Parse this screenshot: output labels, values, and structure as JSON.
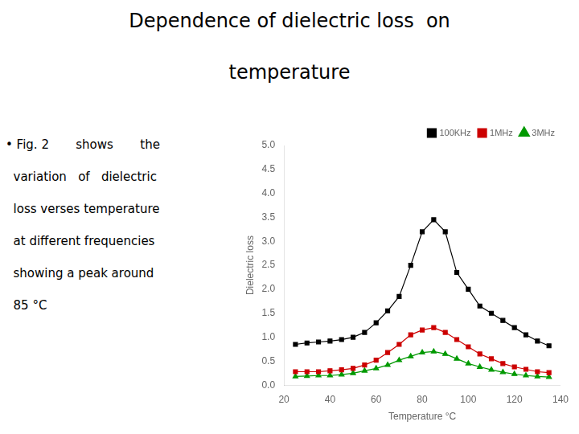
{
  "chart_data": {
    "type": "line",
    "title": [
      "Dependence of dielectric loss  on",
      "temperature"
    ],
    "annotations": [
      "• Fig. 2       shows       the",
      "  variation   of   dielectric",
      "  loss verses temperature",
      "  at different frequencies",
      "  showing a peak around",
      "  85 °C"
    ],
    "xlabel": "Temperature °C",
    "ylabel": "Dielectric loss",
    "x": [
      25,
      30,
      35,
      40,
      45,
      50,
      55,
      60,
      65,
      70,
      75,
      80,
      85,
      90,
      95,
      100,
      105,
      110,
      115,
      120,
      125,
      130,
      135
    ],
    "series": [
      {
        "name": "100KHz",
        "color": "#000000",
        "marker": "square",
        "values": [
          0.85,
          0.88,
          0.9,
          0.92,
          0.95,
          1.0,
          1.1,
          1.3,
          1.55,
          1.85,
          2.5,
          3.2,
          3.45,
          3.2,
          2.35,
          2.0,
          1.65,
          1.5,
          1.35,
          1.2,
          1.05,
          0.92,
          0.82
        ]
      },
      {
        "name": "1MHz",
        "color": "#cc0000",
        "marker": "square",
        "values": [
          0.28,
          0.28,
          0.28,
          0.3,
          0.32,
          0.35,
          0.42,
          0.52,
          0.68,
          0.85,
          1.05,
          1.15,
          1.2,
          1.1,
          0.95,
          0.8,
          0.65,
          0.55,
          0.45,
          0.38,
          0.33,
          0.28,
          0.26
        ]
      },
      {
        "name": "3MHz",
        "color": "#009900",
        "marker": "triangle",
        "values": [
          0.18,
          0.19,
          0.2,
          0.2,
          0.22,
          0.25,
          0.3,
          0.35,
          0.42,
          0.52,
          0.6,
          0.68,
          0.7,
          0.65,
          0.55,
          0.45,
          0.38,
          0.32,
          0.27,
          0.23,
          0.2,
          0.18,
          0.17
        ]
      }
    ],
    "xlim": [
      20,
      140
    ],
    "ylim": [
      0.0,
      5.0
    ],
    "xticks": [
      20,
      40,
      60,
      80,
      100,
      120,
      140
    ],
    "yticks": [
      {
        "value": 0.0,
        "label": "0.0"
      },
      0.5,
      {
        "value": 1.0,
        "label": "1.0"
      },
      1.5,
      {
        "value": 2.0,
        "label": "2.0"
      },
      2.5,
      {
        "value": 3.0,
        "label": "3.0"
      },
      3.5,
      {
        "value": 4.0,
        "label": "4.0"
      },
      4.5,
      {
        "value": 5.0,
        "label": "5.0"
      }
    ],
    "grid": false,
    "legend": "upper right"
  }
}
